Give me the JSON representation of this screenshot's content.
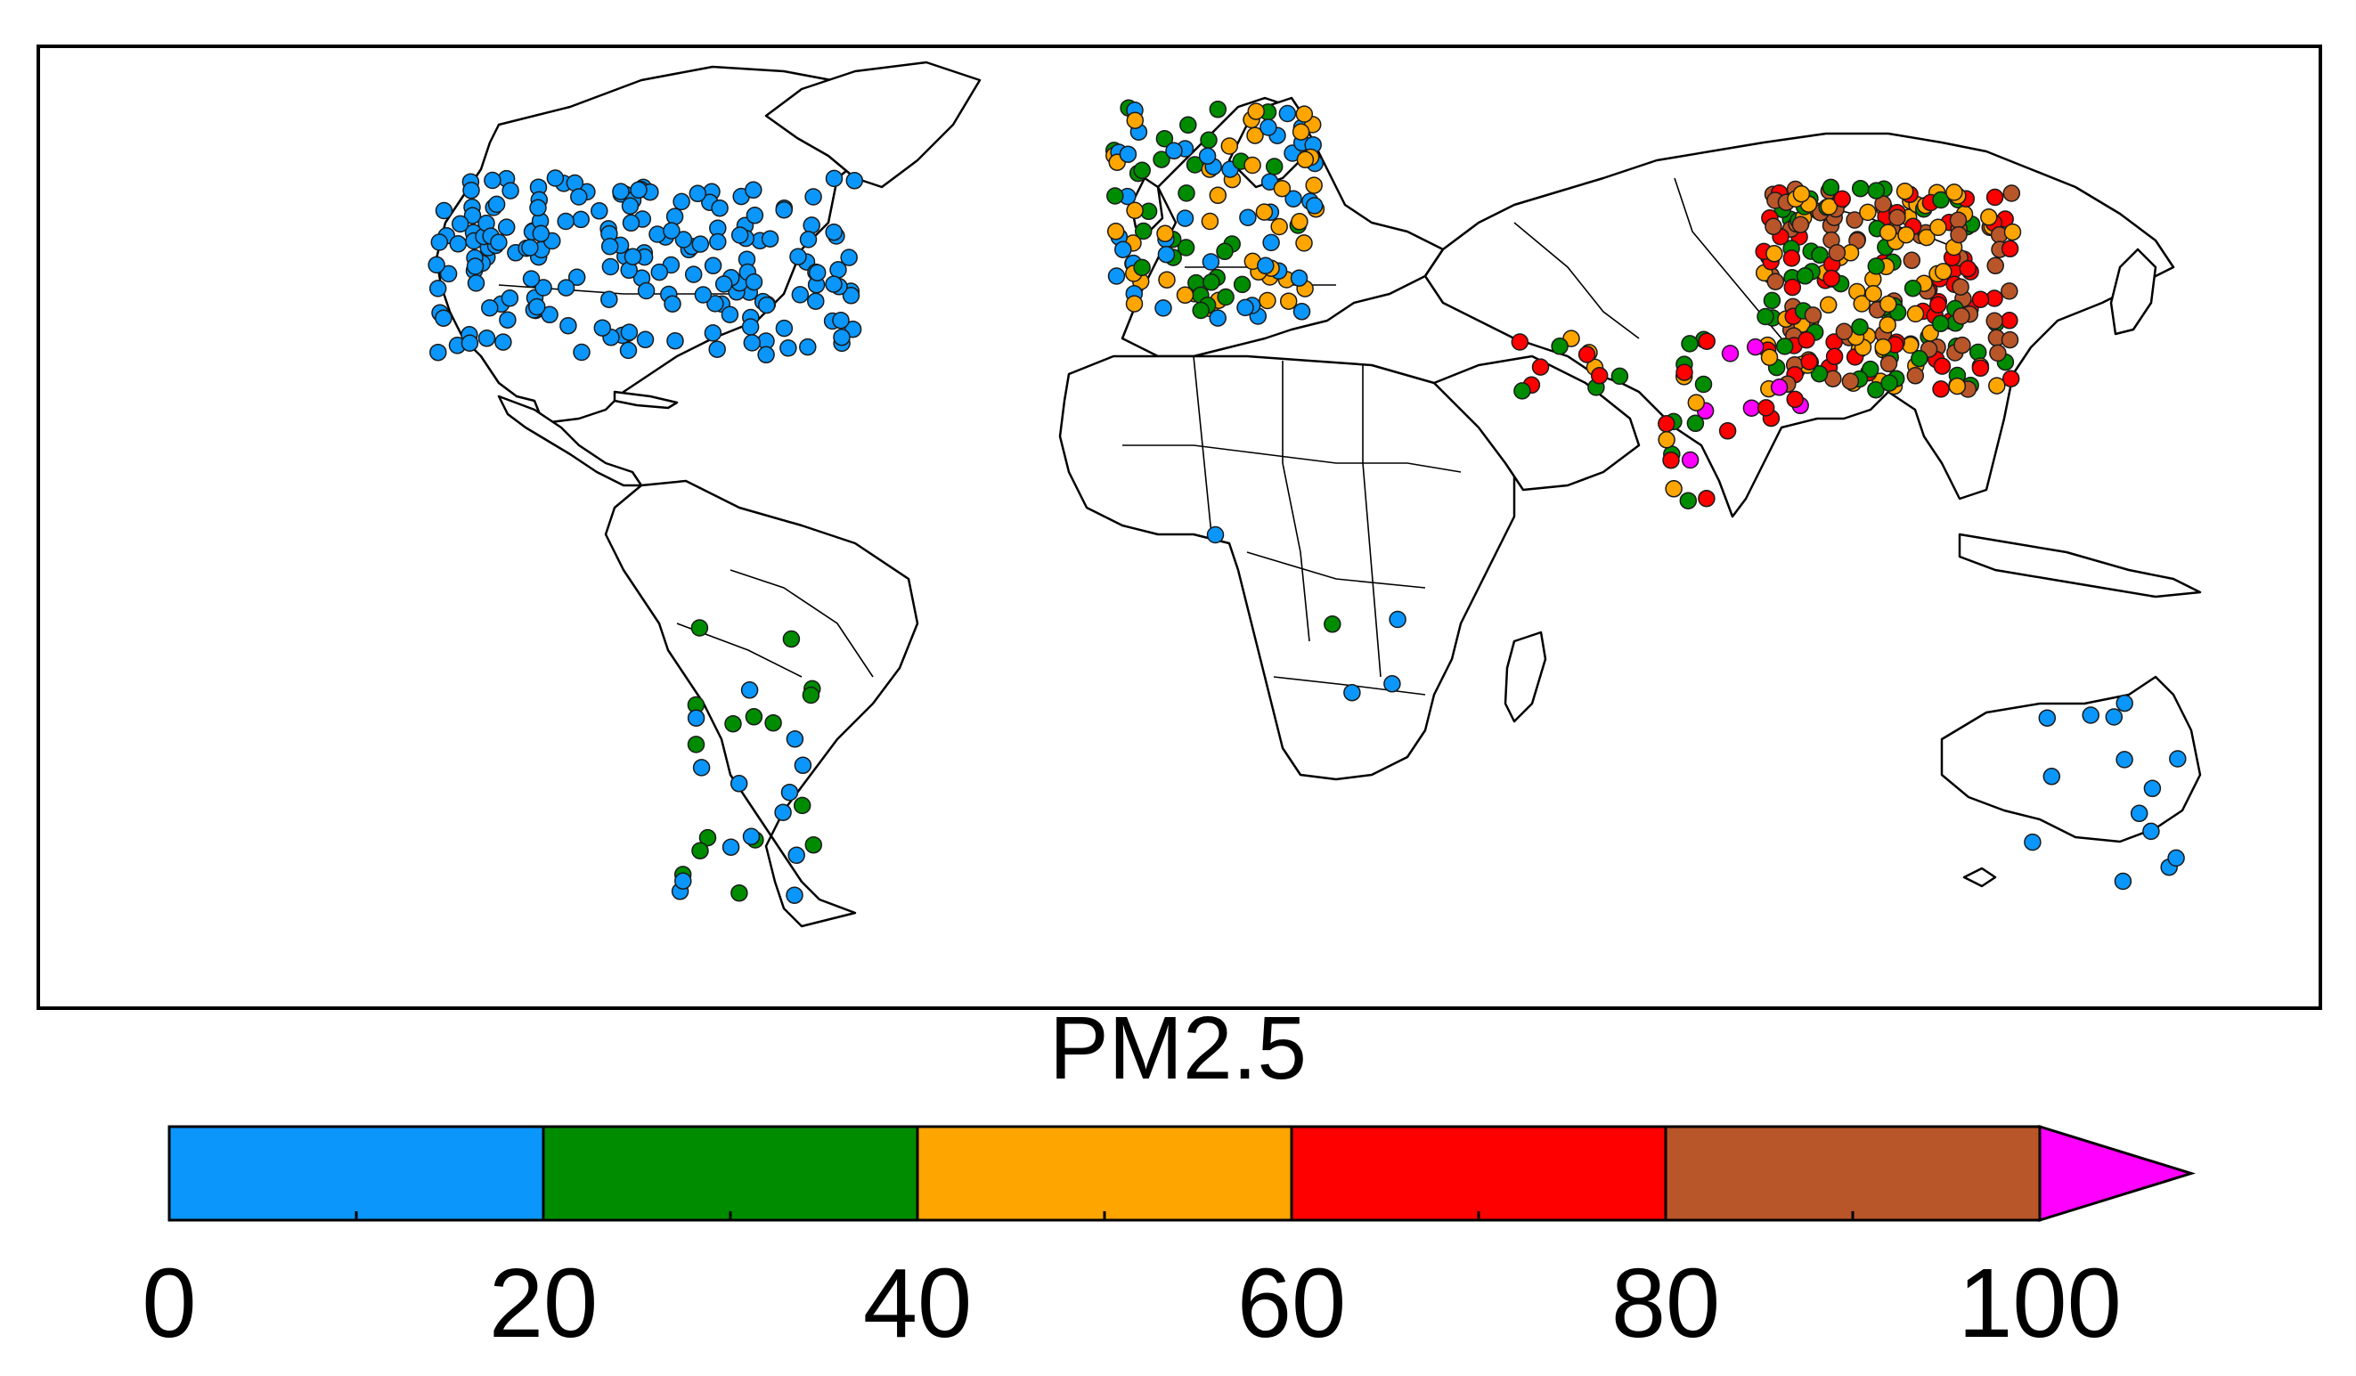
{
  "legend": {
    "title": "PM2.5",
    "ticks": [
      "0",
      "20",
      "40",
      "60",
      "80",
      "100"
    ],
    "bins": [
      {
        "min": 0,
        "max": 20,
        "color": "#0A96FA"
      },
      {
        "min": 20,
        "max": 40,
        "color": "#008C00"
      },
      {
        "min": 40,
        "max": 60,
        "color": "#FFA500"
      },
      {
        "min": 60,
        "max": 80,
        "color": "#FF0000"
      },
      {
        "min": 80,
        "max": 100,
        "color": "#B8562A"
      }
    ],
    "overflow_color": "#FF00FF"
  },
  "map": {
    "projection": "equirectangular, Pacific-centred at 10°E? no — Atlantic centred",
    "regions": [
      {
        "name": "North America",
        "count": 190,
        "colors": [
          "#0A96FA"
        ]
      },
      {
        "name": "Europe",
        "count": 120,
        "colors": [
          "#0A96FA",
          "#008C00",
          "#FFA500"
        ]
      },
      {
        "name": "China",
        "count": 260,
        "colors": [
          "#008C00",
          "#FFA500",
          "#FF0000",
          "#B8562A"
        ]
      },
      {
        "name": "India",
        "count": 30,
        "colors": [
          "#FF00FF",
          "#FF0000",
          "#FFA500",
          "#008C00"
        ]
      },
      {
        "name": "Middle East",
        "count": 12,
        "colors": [
          "#FFA500",
          "#FF0000",
          "#008C00"
        ]
      },
      {
        "name": "South America",
        "count": 30,
        "colors": [
          "#0A96FA",
          "#008C00"
        ]
      },
      {
        "name": "Australia",
        "count": 14,
        "colors": [
          "#0A96FA"
        ]
      },
      {
        "name": "Africa",
        "count": 5,
        "colors": [
          "#0A96FA",
          "#FFA500",
          "#008C00"
        ]
      }
    ]
  }
}
